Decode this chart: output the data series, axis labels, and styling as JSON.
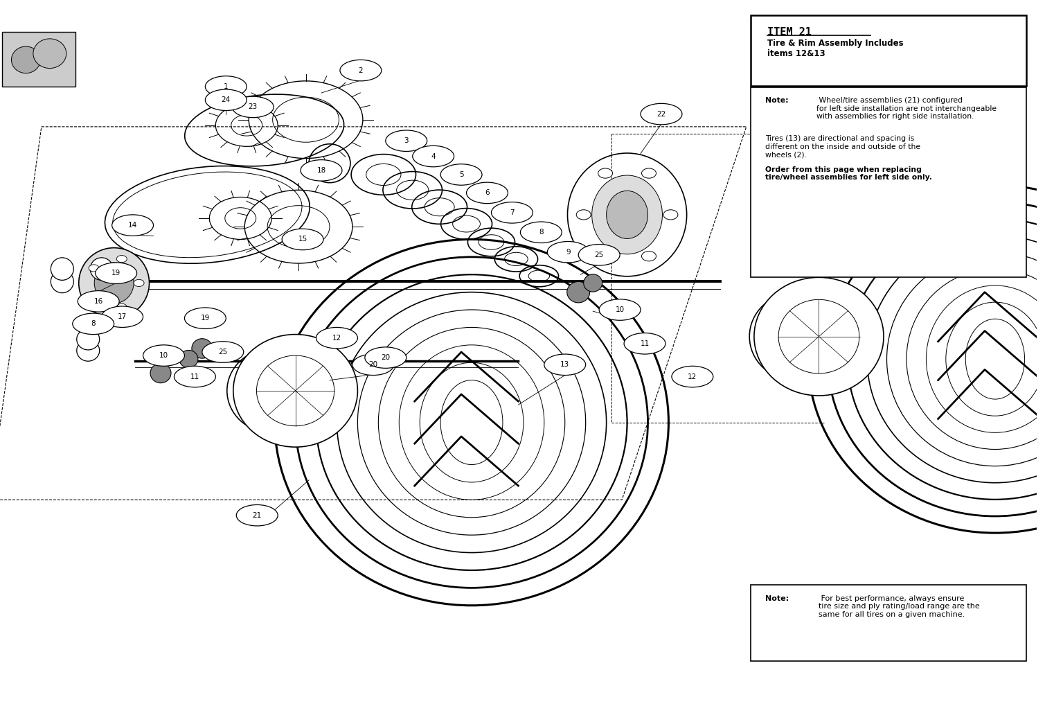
{
  "title": "ITEM 21",
  "subtitle": "Tire & Rim Assembly Includes\nitems 12&13",
  "note1_text1": "Wheel/tire assemblies (21) configured\nfor left side installation are not interchangeable\nwith assemblies for right side installation.",
  "note1_text2": "Tires (13) are directional and spacing is\ndifferent on the inside and outside of the\nwheels (2).",
  "note1_text3": "Order from this page when replacing\ntire/wheel assemblies for left side only.",
  "note2_text": "For best performance, always ensure\ntire size and ply rating/load range are the\nsame for all tires on a given machine.",
  "bg_color": "#ffffff",
  "line_color": "#000000"
}
